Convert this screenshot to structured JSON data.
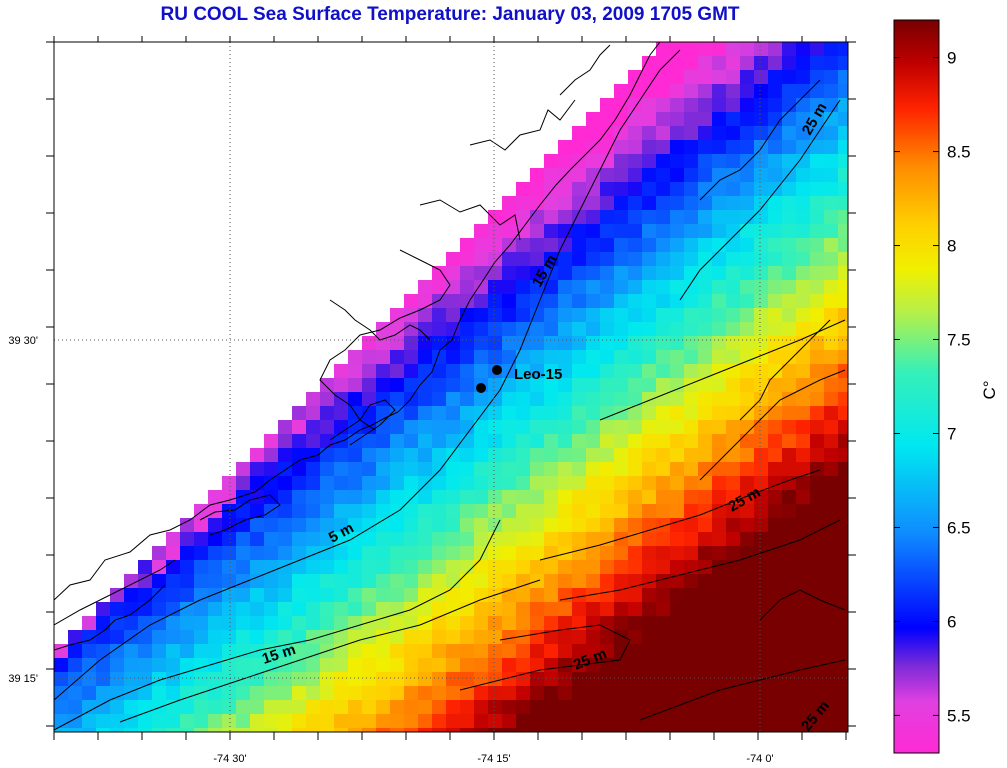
{
  "title": "RU COOL  Sea Surface Temperature:  January 03, 2009 1705 GMT",
  "axes": {
    "x_ticks": [
      "-74 30'",
      "-74 15'",
      "-74 0'"
    ],
    "y_ticks": [
      "39 30'",
      "39 15'"
    ]
  },
  "station": {
    "label": "Leo-15"
  },
  "contour_labels": [
    "5 m",
    "15 m",
    "15 m",
    "25 m",
    "25 m",
    "25 m",
    "25 m"
  ],
  "colorbar": {
    "unit": "C°",
    "ticks": [
      "9",
      "8.5",
      "8",
      "7.5",
      "7",
      "6.5",
      "6",
      "5.5"
    ],
    "min": 5.3,
    "max": 9.2
  },
  "colors": {
    "title": "#1010c8",
    "land": "#ffffff",
    "gridlines": "#555555"
  }
}
